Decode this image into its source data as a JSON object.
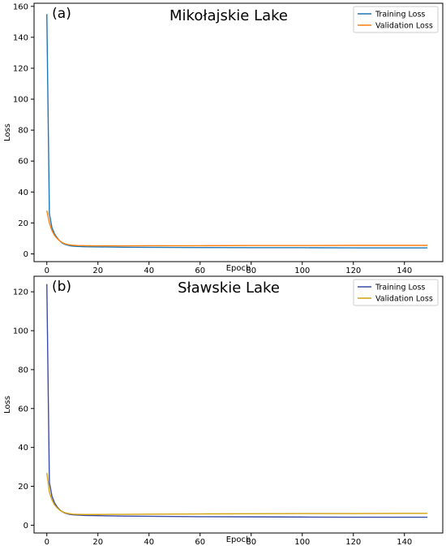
{
  "chart_data": [
    {
      "type": "line",
      "panel": "(a)",
      "title": "Mikołajskie Lake",
      "xlabel": "Epoch",
      "ylabel": "Loss",
      "xlim": [
        -5,
        155
      ],
      "ylim": [
        -5,
        162
      ],
      "xticks": [
        0,
        20,
        40,
        60,
        80,
        100,
        120,
        140
      ],
      "yticks": [
        0,
        20,
        40,
        60,
        80,
        100,
        120,
        140,
        160
      ],
      "legend_position": "top-right",
      "series": [
        {
          "name": "Training Loss",
          "color": "#1f77b4",
          "x": [
            0,
            1,
            2,
            3,
            4,
            5,
            6,
            7,
            8,
            9,
            10,
            12,
            15,
            20,
            25,
            30,
            40,
            60,
            80,
            100,
            120,
            140,
            149
          ],
          "values": [
            155,
            26,
            17,
            13,
            10.5,
            8.5,
            7,
            6.2,
            5.7,
            5.3,
            5.0,
            4.8,
            4.6,
            4.5,
            4.4,
            4.3,
            4.2,
            4.1,
            4.0,
            4.0,
            3.9,
            3.9,
            3.9
          ]
        },
        {
          "name": "Validation Loss",
          "color": "#ff7f0e",
          "x": [
            0,
            1,
            2,
            3,
            4,
            5,
            6,
            7,
            8,
            9,
            10,
            12,
            15,
            20,
            25,
            30,
            40,
            60,
            80,
            100,
            120,
            140,
            149
          ],
          "values": [
            28,
            20,
            15,
            12,
            10,
            8.5,
            7.3,
            6.6,
            6.1,
            5.8,
            5.6,
            5.4,
            5.3,
            5.2,
            5.2,
            5.2,
            5.3,
            5.3,
            5.4,
            5.4,
            5.5,
            5.5,
            5.5
          ]
        }
      ]
    },
    {
      "type": "line",
      "panel": "(b)",
      "title": "Sławskie Lake",
      "xlabel": "Epoch",
      "ylabel": "Loss",
      "xlim": [
        -5,
        155
      ],
      "ylim": [
        -4,
        128
      ],
      "xticks": [
        0,
        20,
        40,
        60,
        80,
        100,
        120,
        140
      ],
      "yticks": [
        0,
        20,
        40,
        60,
        80,
        100,
        120
      ],
      "legend_position": "top-right",
      "series": [
        {
          "name": "Training Loss",
          "color": "#3b4ba8",
          "x": [
            0,
            1,
            2,
            3,
            4,
            5,
            6,
            7,
            8,
            9,
            10,
            12,
            15,
            20,
            25,
            30,
            40,
            60,
            80,
            100,
            120,
            140,
            149
          ],
          "values": [
            124,
            22,
            15,
            11.5,
            9.5,
            8,
            7,
            6.3,
            5.9,
            5.6,
            5.4,
            5.2,
            5.0,
            4.9,
            4.8,
            4.7,
            4.6,
            4.4,
            4.3,
            4.2,
            4.1,
            4.1,
            4.1
          ]
        },
        {
          "name": "Validation Loss",
          "color": "#d4a20a",
          "x": [
            0,
            1,
            2,
            3,
            4,
            5,
            6,
            7,
            8,
            9,
            10,
            12,
            15,
            20,
            25,
            30,
            40,
            60,
            80,
            100,
            120,
            140,
            149
          ],
          "values": [
            27,
            17,
            13,
            10.5,
            9,
            7.8,
            7,
            6.5,
            6.1,
            5.9,
            5.7,
            5.6,
            5.5,
            5.5,
            5.6,
            5.6,
            5.7,
            5.8,
            5.9,
            6.0,
            6.0,
            6.1,
            6.1
          ]
        }
      ]
    }
  ]
}
